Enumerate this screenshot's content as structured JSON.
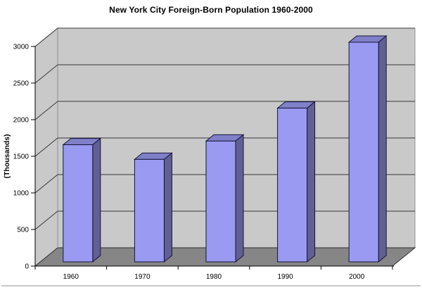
{
  "chart_data": {
    "type": "bar",
    "style": "3d-column",
    "title": "New York City Foreign-Born Population 1960-2000",
    "xlabel": "",
    "ylabel": "(Thousands)",
    "categories": [
      "1960",
      "1970",
      "1980",
      "1990",
      "2000"
    ],
    "values": [
      1600,
      1400,
      1650,
      2100,
      3000
    ],
    "ylim": [
      0,
      3000
    ],
    "ytick_step": 500,
    "ytick_labels": [
      "0",
      "500",
      "1000",
      "1500",
      "2000",
      "2500",
      "3000"
    ],
    "grid": true,
    "legend": false,
    "colors": {
      "bar_front": "#9a9af2",
      "bar_top": "#8080c8",
      "bar_side": "#50507e",
      "bar_side_dot": "#7070a6",
      "bar_outline": "#14143c",
      "wall": "#c9c9c9",
      "wall_edge": "#8f8f8f",
      "floor": "#868686",
      "floor_edge": "#2f2f2f",
      "gridline": "#383838",
      "axis": "#000000",
      "background": "#ffffff",
      "text": "#000000"
    }
  }
}
